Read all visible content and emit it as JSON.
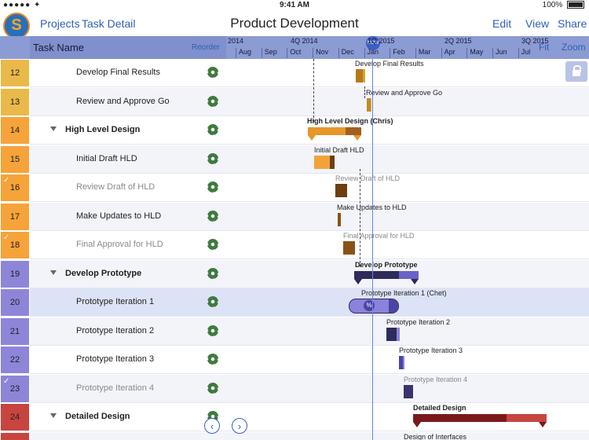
{
  "status": {
    "left": "●●●●● ✦",
    "time": "9:41 AM",
    "battery": "100%"
  },
  "nav": {
    "projects": "Projects",
    "task_detail": "Task Detail",
    "title": "Product Development",
    "edit": "Edit",
    "view": "View",
    "share": "Share"
  },
  "header": {
    "task_name": "Task Name",
    "reorder": "Reorder",
    "fit": "Fit",
    "zoom": "Zoom",
    "now": "NOW",
    "quarters": [
      "2014",
      "4Q 2014",
      "1Q 2015",
      "2Q 2015",
      "3Q 2015"
    ],
    "months": [
      "Aug",
      "Sep",
      "Oct",
      "Nov",
      "Dec",
      "Jan",
      "Feb",
      "Mar",
      "Apr",
      "May",
      "Jun",
      "Jul"
    ]
  },
  "colors": {
    "orange": "#f6a33a",
    "gold": "#e9b94a",
    "purple": "#8d86d8",
    "red": "#c8443f"
  },
  "tasks": [
    {
      "num": "12",
      "name": "Develop Final Results",
      "done": false,
      "group": false,
      "label": "Develop Final Results"
    },
    {
      "num": "13",
      "name": "Review and Approve Go",
      "done": false,
      "group": false,
      "label": "Review and Approve Go"
    },
    {
      "num": "14",
      "name": "High Level Design",
      "done": false,
      "group": true,
      "label": "High Level Design (Chris)"
    },
    {
      "num": "15",
      "name": "Initial Draft HLD",
      "done": false,
      "group": false,
      "label": "Initial Draft HLD"
    },
    {
      "num": "16",
      "name": "Review Draft of HLD",
      "done": true,
      "group": false,
      "label": "Review Draft of HLD"
    },
    {
      "num": "17",
      "name": "Make Updates to HLD",
      "done": false,
      "group": false,
      "label": "Make Updates to HLD"
    },
    {
      "num": "18",
      "name": "Final Approval for HLD",
      "done": true,
      "group": false,
      "label": "Final Approval for HLD"
    },
    {
      "num": "19",
      "name": "Develop Prototype",
      "done": false,
      "group": true,
      "label": "Develop Prototype"
    },
    {
      "num": "20",
      "name": "Prototype Iteration 1",
      "done": false,
      "group": false,
      "label": "Prototype Iteration 1 (Chet)"
    },
    {
      "num": "21",
      "name": "Prototype Iteration 2",
      "done": false,
      "group": false,
      "label": "Prototype Iteration 2"
    },
    {
      "num": "22",
      "name": "Prototype Iteration 3",
      "done": false,
      "group": false,
      "label": "Prototype Iteration 3"
    },
    {
      "num": "23",
      "name": "Prototype Iteration 4",
      "done": true,
      "group": false,
      "label": "Prototype Iteration 4"
    },
    {
      "num": "24",
      "name": "Detailed Design",
      "done": false,
      "group": true,
      "label": "Detailed Design"
    },
    {
      "num": "",
      "name": "",
      "done": false,
      "group": false,
      "label": "Design of Interfaces"
    }
  ],
  "progress_badge": "%",
  "pager": {
    "prev": "‹",
    "next": "›"
  }
}
